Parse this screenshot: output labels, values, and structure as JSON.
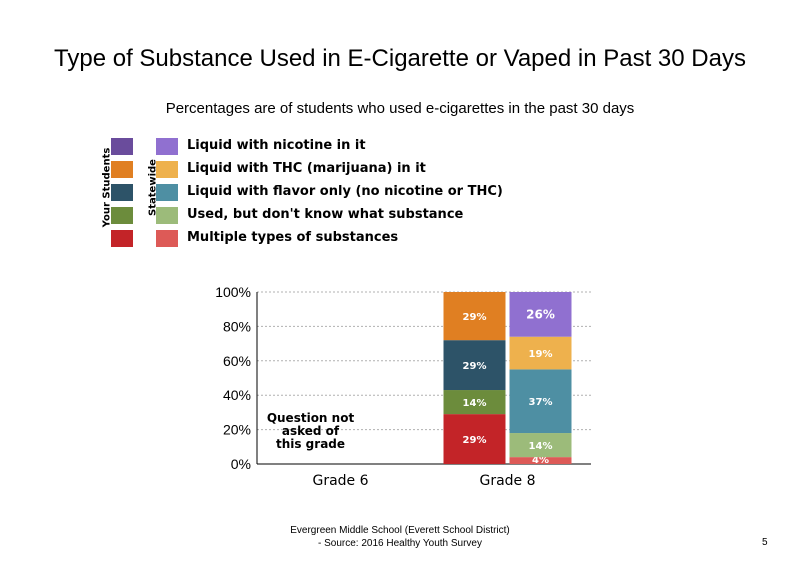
{
  "legend": {
    "your_students_label": "Your Students",
    "statewide_label": "Statewide"
  },
  "chart_data": {
    "type": "bar",
    "stacked": true,
    "title": "Type of Substance Used in E-Cigarette or Vaped in Past 30 Days",
    "subtitle": "Percentages are of students who used e-cigarettes in the past 30 days",
    "categories": [
      "Grade 6",
      "Grade 8"
    ],
    "groups": [
      "Your Students",
      "Statewide"
    ],
    "ylim": [
      0,
      100
    ],
    "yticks": [
      "0%",
      "20%",
      "40%",
      "60%",
      "80%",
      "100%"
    ],
    "grid": true,
    "legend_position": "top-left",
    "series": [
      {
        "name": "Liquid with nicotine in it",
        "color_school": "#6A4C9C",
        "color_state": "#9070D0",
        "values": {
          "Grade 8": {
            "school": 0,
            "state": 26
          }
        },
        "labels": {
          "Grade 8": {
            "school": "",
            "state": "26%"
          }
        }
      },
      {
        "name": "Liquid with THC (marijuana) in it",
        "color_school": "#E07F22",
        "color_state": "#EEB14D",
        "values": {
          "Grade 8": {
            "school": 29,
            "state": 19
          }
        },
        "labels": {
          "Grade 8": {
            "school": "29%",
            "state": "19%"
          }
        }
      },
      {
        "name": "Liquid with flavor only (no nicotine or THC)",
        "color_school": "#2D5368",
        "color_state": "#4E8FA3",
        "values": {
          "Grade 8": {
            "school": 29,
            "state": 37
          }
        },
        "labels": {
          "Grade 8": {
            "school": "29%",
            "state": "37%"
          }
        }
      },
      {
        "name": "Used, but don't know what substance",
        "color_school": "#6C8C3C",
        "color_state": "#9CBB7A",
        "values": {
          "Grade 8": {
            "school": 14,
            "state": 14
          }
        },
        "labels": {
          "Grade 8": {
            "school": "14%",
            "state": "14%"
          }
        }
      },
      {
        "name": "Multiple types of substances",
        "color_school": "#C32428",
        "color_state": "#DD5A57",
        "values": {
          "Grade 8": {
            "school": 29,
            "state": 4
          }
        },
        "labels": {
          "Grade 8": {
            "school": "29%",
            "state": "4%"
          }
        }
      }
    ],
    "annotation": "Question not asked of this grade",
    "annotation_category": "Grade 6"
  },
  "footer": {
    "line1": "Evergreen Middle School (Everett School District)",
    "line2": "- Source: 2016 Healthy Youth Survey"
  },
  "page_number": "5"
}
